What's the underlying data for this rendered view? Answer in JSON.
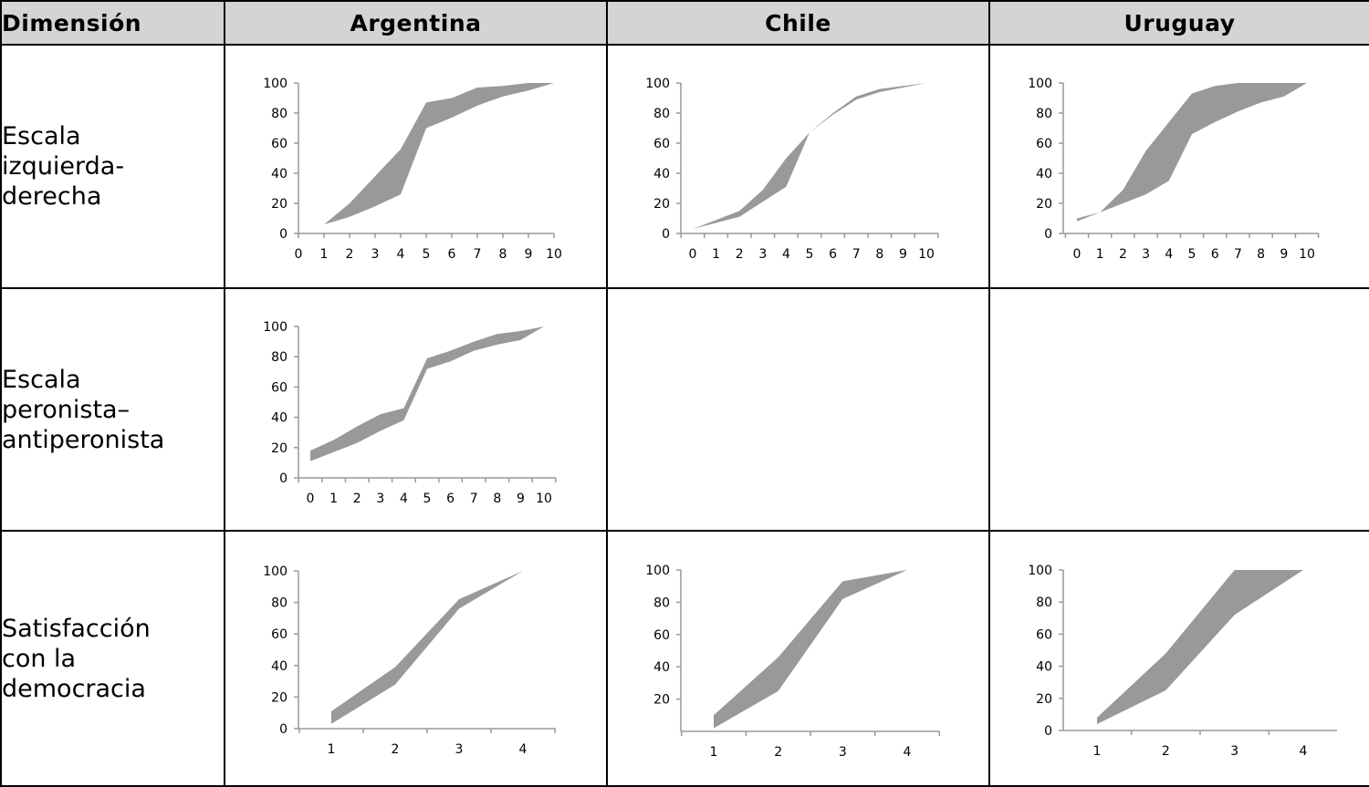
{
  "headers": {
    "dimension": "Dimensión",
    "countries": [
      "Argentina",
      "Chile",
      "Uruguay"
    ]
  },
  "rows": [
    {
      "label_lines": [
        "Escala",
        "izquierda-",
        "derecha"
      ]
    },
    {
      "label_lines": [
        "Escala",
        "peronista–",
        "antiperonista"
      ]
    },
    {
      "label_lines": [
        "Satisfacción",
        "con la",
        "democracia"
      ]
    }
  ],
  "colors": {
    "band": "#999999",
    "axis": "#999999",
    "header_bg": "#d4d4d4"
  },
  "chart_data": [
    {
      "id": "ar-lr",
      "type": "area",
      "row": 0,
      "col": 0,
      "x": [
        0,
        1,
        2,
        3,
        4,
        5,
        6,
        7,
        8,
        9,
        10
      ],
      "series": [
        {
          "values": [
            3,
            6,
            20,
            38,
            56,
            87,
            90,
            97,
            98,
            100,
            100
          ]
        },
        {
          "values": [
            3,
            6,
            11,
            18,
            26,
            70,
            77,
            85,
            91,
            95,
            100
          ]
        }
      ],
      "ylim": [
        0,
        100
      ],
      "yticks": [
        0,
        20,
        40,
        60,
        80,
        100
      ],
      "xticks": [
        "0",
        "1",
        "2",
        "3",
        "4",
        "5",
        "6",
        "7",
        "8",
        "9",
        "10"
      ]
    },
    {
      "id": "cl-lr",
      "type": "area",
      "row": 0,
      "col": 1,
      "x": [
        0,
        1,
        2,
        3,
        4,
        5,
        6,
        7,
        8,
        9,
        10
      ],
      "series": [
        {
          "values": [
            3,
            9,
            15,
            29,
            50,
            67,
            80,
            91,
            96,
            98,
            100
          ]
        },
        {
          "values": [
            3,
            7,
            11,
            21,
            31,
            67,
            79,
            89,
            94,
            97,
            100
          ]
        }
      ],
      "ylim": [
        0,
        100
      ],
      "yticks": [
        0,
        20,
        40,
        60,
        80,
        100
      ],
      "xticks": [
        "0",
        "1",
        "2",
        "3",
        "4",
        "5",
        "6",
        "7",
        "8",
        "9",
        "10"
      ]
    },
    {
      "id": "uy-lr",
      "type": "area",
      "row": 0,
      "col": 2,
      "x": [
        0,
        1,
        2,
        3,
        4,
        5,
        6,
        7,
        8,
        9,
        10
      ],
      "series": [
        {
          "values": [
            10,
            14,
            29,
            55,
            74,
            93,
            98,
            100,
            100,
            100,
            100
          ]
        },
        {
          "values": [
            8,
            14,
            20,
            26,
            35,
            66,
            74,
            81,
            87,
            91,
            100
          ]
        }
      ],
      "ylim": [
        0,
        100
      ],
      "yticks": [
        0,
        20,
        40,
        60,
        80,
        100
      ],
      "xticks": [
        "0",
        "1",
        "2",
        "3",
        "4",
        "5",
        "6",
        "7",
        "8",
        "9",
        "10"
      ]
    },
    {
      "id": "ar-peron",
      "type": "area",
      "row": 1,
      "col": 0,
      "x": [
        0,
        1,
        2,
        3,
        4,
        5,
        6,
        7,
        8,
        9,
        10
      ],
      "series": [
        {
          "values": [
            18,
            25,
            34,
            42,
            46,
            79,
            84,
            90,
            95,
            97,
            100
          ]
        },
        {
          "values": [
            11,
            17,
            23,
            31,
            38,
            72,
            77,
            84,
            88,
            91,
            100
          ]
        }
      ],
      "ylim": [
        0,
        100
      ],
      "yticks": [
        0,
        20,
        40,
        60,
        80,
        100
      ],
      "xticks": [
        "0",
        "1",
        "2",
        "3",
        "4",
        "5",
        "6",
        "7",
        "8",
        "9",
        "10"
      ]
    },
    {
      "id": "ar-sat",
      "type": "area",
      "row": 2,
      "col": 0,
      "x": [
        1,
        2,
        3,
        4
      ],
      "series": [
        {
          "values": [
            11,
            39,
            82,
            100
          ]
        },
        {
          "values": [
            3,
            28,
            76,
            100
          ]
        }
      ],
      "ylim": [
        0,
        100
      ],
      "yticks": [
        0,
        20,
        40,
        60,
        80,
        100
      ],
      "xticks": [
        "1",
        "2",
        "3",
        "4"
      ]
    },
    {
      "id": "cl-sat",
      "type": "area",
      "row": 2,
      "col": 1,
      "x": [
        1,
        2,
        3,
        4
      ],
      "series": [
        {
          "values": [
            10,
            46,
            93,
            100
          ]
        },
        {
          "values": [
            2,
            25,
            82,
            100
          ]
        }
      ],
      "ylim": [
        0,
        100
      ],
      "yticks": [
        20,
        40,
        60,
        80,
        100
      ],
      "xticks": [
        "1",
        "2",
        "3",
        "4"
      ]
    },
    {
      "id": "uy-sat",
      "type": "area",
      "row": 2,
      "col": 2,
      "x": [
        1,
        2,
        3,
        4
      ],
      "series": [
        {
          "values": [
            8,
            48,
            100,
            100
          ]
        },
        {
          "values": [
            4,
            25,
            72,
            100
          ]
        }
      ],
      "ylim": [
        0,
        100
      ],
      "yticks": [
        0,
        20,
        40,
        60,
        80,
        100
      ],
      "xticks": [
        "1",
        "2",
        "3",
        "4"
      ]
    }
  ]
}
